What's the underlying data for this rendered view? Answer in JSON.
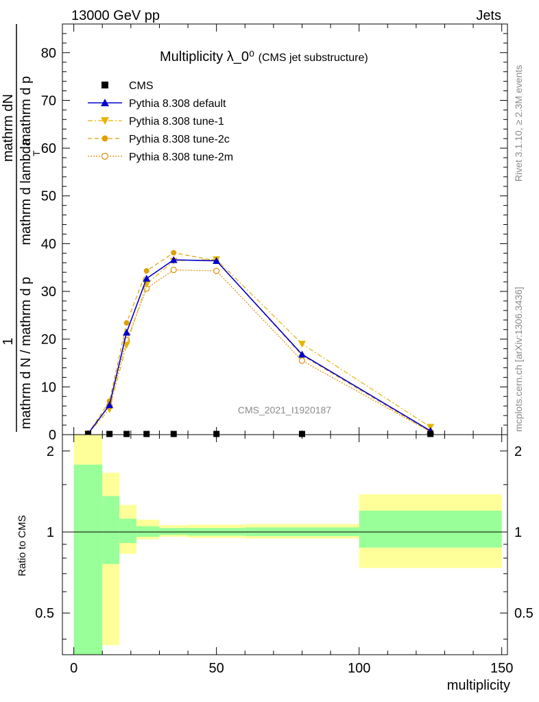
{
  "header": {
    "left": "13000 GeV pp",
    "right": "Jets"
  },
  "side_text": {
    "rivet": "Rivet 3.1.10, ≥ 2.3M events",
    "mcplots": "mcplots.cern.ch [arXiv:1306.3436]"
  },
  "colors": {
    "cms": "#000000",
    "default": "#0000cc",
    "tune1": "#e6b400",
    "tune2c": "#e0a000",
    "tune2m": "#e08a00",
    "band_inner": "#99ff99",
    "band_outer": "#ffff99"
  },
  "chart_data": [
    {
      "type": "line",
      "title": "Multiplicity λ_0⁰",
      "subtitle": "(CMS jet substructure)",
      "watermark": "CMS_2021_I1920187",
      "ylabel": "1 / mathrm d N / mathrm d p_T mathrm d N / mathrm d p_T mathrm d lambda",
      "ylabel_parts": {
        "den": "mathrm d N / mathrm d p",
        "den_tail": "mathrm d p",
        "num_fraction": "mathrm dN",
        "den_fraction": "mathrm d p",
        "den_fraction_tail": "mathrm d lambda",
        "one": "1",
        "sub": "T"
      },
      "xlim": [
        -4,
        152
      ],
      "ylim": [
        0,
        86
      ],
      "y_ticks": [
        "0",
        "10",
        "20",
        "30",
        "40",
        "50",
        "60",
        "70",
        "80"
      ],
      "legend": {
        "position": "top-left",
        "entries": [
          "CMS",
          "Pythia 8.308 default",
          "Pythia 8.308 tune-1",
          "Pythia 8.308 tune-2c",
          "Pythia 8.308 tune-2m"
        ]
      },
      "series": [
        {
          "name": "CMS",
          "style": "square-marker",
          "x": [
            5,
            12.5,
            18.5,
            25.5,
            35,
            50,
            80,
            125
          ],
          "y": [
            0,
            0,
            0,
            0,
            0,
            0,
            0,
            0
          ]
        },
        {
          "name": "Pythia 8.308 default",
          "style": "solid-triangle-up",
          "x": [
            5,
            12.5,
            18.5,
            25.5,
            35,
            50,
            80,
            125
          ],
          "y": [
            0.2,
            6.2,
            21.4,
            32.7,
            36.6,
            36.4,
            16.8,
            0.8
          ]
        },
        {
          "name": "Pythia 8.308 tune-1",
          "style": "dashdot-triangle-down",
          "x": [
            5,
            12.5,
            18.5,
            25.5,
            35,
            50,
            80,
            125
          ],
          "y": [
            0.2,
            5.3,
            18.8,
            31.5,
            36.4,
            36.7,
            19.0,
            1.6
          ]
        },
        {
          "name": "Pythia 8.308 tune-2c",
          "style": "dashed-circle",
          "x": [
            5,
            12.5,
            18.5,
            25.5,
            35,
            50,
            80,
            125
          ],
          "y": [
            0.2,
            7.0,
            23.4,
            34.3,
            38.1,
            36.4,
            16.6,
            0.6
          ]
        },
        {
          "name": "Pythia 8.308 tune-2m",
          "style": "dotted-open-circle",
          "x": [
            5,
            12.5,
            18.5,
            25.5,
            35,
            50,
            80,
            125
          ],
          "y": [
            0.2,
            6.1,
            19.8,
            30.6,
            34.5,
            34.3,
            15.5,
            0.6
          ]
        }
      ]
    },
    {
      "type": "area",
      "ylabel": "Ratio to CMS",
      "xlabel": "multiplicity",
      "xlim": [
        -4,
        152
      ],
      "ylim": [
        0.35,
        2.3
      ],
      "y_scale": "log",
      "y_ticks": [
        "0.5",
        "1",
        "2"
      ],
      "x_ticks": [
        "0",
        "50",
        "100",
        "150"
      ],
      "reference_line": 1,
      "bins": [
        {
          "x0": 0,
          "x1": 10,
          "inner": [
            0.35,
            1.78
          ],
          "outer": [
            0.35,
            2.3
          ]
        },
        {
          "x0": 10,
          "x1": 16,
          "inner": [
            0.76,
            1.36
          ],
          "outer": [
            0.38,
            1.66
          ]
        },
        {
          "x0": 16,
          "x1": 22,
          "inner": [
            0.91,
            1.12
          ],
          "outer": [
            0.83,
            1.26
          ]
        },
        {
          "x0": 22,
          "x1": 30,
          "inner": [
            0.96,
            1.05
          ],
          "outer": [
            0.94,
            1.11
          ]
        },
        {
          "x0": 30,
          "x1": 40,
          "inner": [
            0.975,
            1.035
          ],
          "outer": [
            0.96,
            1.06
          ]
        },
        {
          "x0": 40,
          "x1": 60,
          "inner": [
            0.97,
            1.035
          ],
          "outer": [
            0.95,
            1.065
          ]
        },
        {
          "x0": 60,
          "x1": 100,
          "inner": [
            0.965,
            1.04
          ],
          "outer": [
            0.945,
            1.07
          ]
        },
        {
          "x0": 100,
          "x1": 150,
          "inner": [
            0.875,
            1.2
          ],
          "outer": [
            0.735,
            1.38
          ]
        }
      ]
    }
  ]
}
